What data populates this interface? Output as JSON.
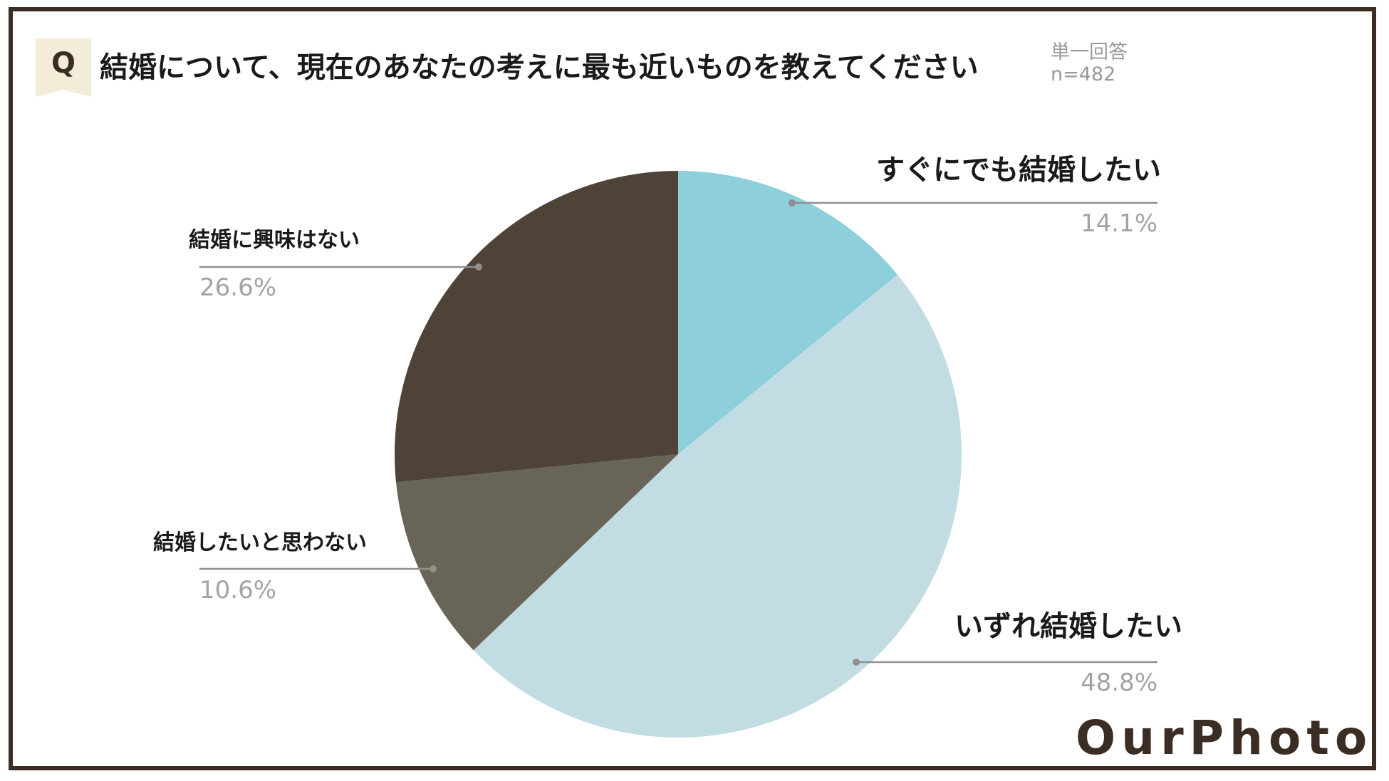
{
  "header": {
    "badge": "Q",
    "question": "結婚について、現在のあなたの考えに最も近いものを教えてください",
    "answer_type": "単一回答",
    "sample_size": "n=482"
  },
  "brand": {
    "logo": "OurPhoto"
  },
  "chart_data": {
    "type": "pie",
    "title": "結婚について、現在のあなたの考えに最も近いものを教えてください",
    "slices": [
      {
        "label": "すぐにでも結婚したい",
        "value": 14.1,
        "value_label": "14.1%",
        "color": "#8ecfdc"
      },
      {
        "label": "いずれ結婚したい",
        "value": 48.8,
        "value_label": "48.8%",
        "color": "#c2dce3"
      },
      {
        "label": "結婚したいと思わない",
        "value": 10.6,
        "value_label": "10.6%",
        "color": "#686458"
      },
      {
        "label": "結婚に興味はない",
        "value": 26.6,
        "value_label": "26.6%",
        "color": "#4f4337"
      }
    ],
    "start_angle": "12 o'clock",
    "direction": "clockwise",
    "legend": "none"
  }
}
